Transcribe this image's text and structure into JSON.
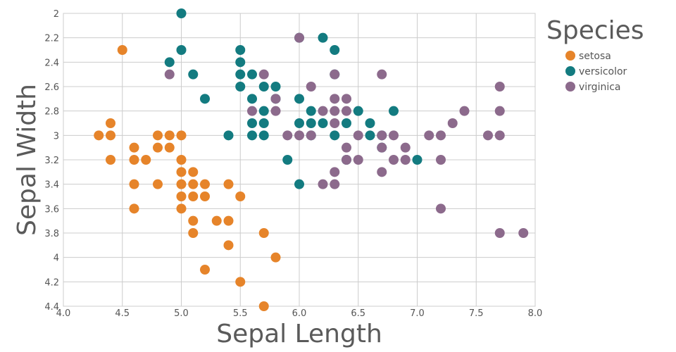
{
  "chart_data": {
    "type": "scatter",
    "xlabel": "Sepal Length",
    "ylabel": "Sepal Width",
    "xlim": [
      4.0,
      8.0
    ],
    "ylim": [
      2.0,
      4.4
    ],
    "y_axis_inverted": true,
    "x_ticks": [
      "4.0",
      "4.5",
      "5.0",
      "5.5",
      "6.0",
      "6.5",
      "7.0",
      "7.5",
      "8.0"
    ],
    "y_ticks": [
      "2",
      "2.2",
      "2.4",
      "2.6",
      "2.8",
      "3",
      "3.2",
      "3.4",
      "3.6",
      "3.8",
      "4",
      "4.2",
      "4.4"
    ],
    "grid": true,
    "legend": {
      "title": "Species",
      "placement": "right"
    },
    "series": [
      {
        "name": "setosa",
        "color": "#e6842a",
        "points": [
          [
            4.5,
            2.3
          ],
          [
            4.3,
            3.0
          ],
          [
            4.4,
            2.9
          ],
          [
            4.4,
            3.0
          ],
          [
            4.4,
            3.2
          ],
          [
            4.6,
            3.1
          ],
          [
            4.6,
            3.2
          ],
          [
            4.6,
            3.4
          ],
          [
            4.6,
            3.6
          ],
          [
            4.7,
            3.2
          ],
          [
            4.8,
            3.0
          ],
          [
            4.8,
            3.1
          ],
          [
            4.8,
            3.4
          ],
          [
            4.9,
            3.0
          ],
          [
            4.9,
            3.1
          ],
          [
            5.0,
            3.0
          ],
          [
            5.0,
            3.2
          ],
          [
            5.0,
            3.3
          ],
          [
            5.0,
            3.4
          ],
          [
            5.0,
            3.5
          ],
          [
            5.0,
            3.6
          ],
          [
            5.1,
            3.3
          ],
          [
            5.1,
            3.4
          ],
          [
            5.1,
            3.5
          ],
          [
            5.1,
            3.7
          ],
          [
            5.1,
            3.8
          ],
          [
            5.2,
            3.4
          ],
          [
            5.2,
            3.5
          ],
          [
            5.2,
            4.1
          ],
          [
            5.3,
            3.7
          ],
          [
            5.4,
            3.4
          ],
          [
            5.4,
            3.7
          ],
          [
            5.4,
            3.9
          ],
          [
            5.5,
            3.5
          ],
          [
            5.5,
            4.2
          ],
          [
            5.7,
            3.8
          ],
          [
            5.7,
            4.4
          ],
          [
            5.8,
            4.0
          ]
        ]
      },
      {
        "name": "versicolor",
        "color": "#137b80",
        "points": [
          [
            5.0,
            2.0
          ],
          [
            5.0,
            2.3
          ],
          [
            4.9,
            2.4
          ],
          [
            5.1,
            2.5
          ],
          [
            5.2,
            2.7
          ],
          [
            5.4,
            3.0
          ],
          [
            5.5,
            2.3
          ],
          [
            5.5,
            2.4
          ],
          [
            5.5,
            2.5
          ],
          [
            5.5,
            2.6
          ],
          [
            5.6,
            2.5
          ],
          [
            5.6,
            2.7
          ],
          [
            5.6,
            2.9
          ],
          [
            5.6,
            3.0
          ],
          [
            5.7,
            2.6
          ],
          [
            5.7,
            2.8
          ],
          [
            5.7,
            2.9
          ],
          [
            5.7,
            3.0
          ],
          [
            5.8,
            2.6
          ],
          [
            5.8,
            2.7
          ],
          [
            5.9,
            3.2
          ],
          [
            6.0,
            2.2
          ],
          [
            6.0,
            2.7
          ],
          [
            6.0,
            2.9
          ],
          [
            6.0,
            3.4
          ],
          [
            6.1,
            2.8
          ],
          [
            6.1,
            2.9
          ],
          [
            6.1,
            3.0
          ],
          [
            6.2,
            2.2
          ],
          [
            6.2,
            2.9
          ],
          [
            6.3,
            2.3
          ],
          [
            6.3,
            2.5
          ],
          [
            6.3,
            3.0
          ],
          [
            6.4,
            2.9
          ],
          [
            6.4,
            3.2
          ],
          [
            6.5,
            2.8
          ],
          [
            6.6,
            2.9
          ],
          [
            6.6,
            3.0
          ],
          [
            6.7,
            3.0
          ],
          [
            6.7,
            3.1
          ],
          [
            6.8,
            2.8
          ],
          [
            7.0,
            3.2
          ]
        ]
      },
      {
        "name": "virginica",
        "color": "#8c6a8c",
        "points": [
          [
            4.9,
            2.5
          ],
          [
            5.6,
            2.8
          ],
          [
            5.7,
            2.5
          ],
          [
            5.8,
            2.7
          ],
          [
            5.8,
            2.8
          ],
          [
            5.9,
            3.0
          ],
          [
            6.0,
            2.2
          ],
          [
            6.0,
            3.0
          ],
          [
            6.1,
            2.6
          ],
          [
            6.1,
            3.0
          ],
          [
            6.2,
            2.8
          ],
          [
            6.2,
            3.4
          ],
          [
            6.3,
            2.5
          ],
          [
            6.3,
            2.7
          ],
          [
            6.3,
            2.8
          ],
          [
            6.3,
            2.9
          ],
          [
            6.3,
            3.3
          ],
          [
            6.3,
            3.4
          ],
          [
            6.4,
            2.7
          ],
          [
            6.4,
            2.8
          ],
          [
            6.4,
            3.1
          ],
          [
            6.4,
            3.2
          ],
          [
            6.5,
            3.0
          ],
          [
            6.5,
            3.2
          ],
          [
            6.7,
            2.5
          ],
          [
            6.7,
            3.0
          ],
          [
            6.7,
            3.1
          ],
          [
            6.7,
            3.3
          ],
          [
            6.8,
            3.0
          ],
          [
            6.8,
            3.2
          ],
          [
            6.9,
            3.1
          ],
          [
            6.9,
            3.2
          ],
          [
            7.1,
            3.0
          ],
          [
            7.2,
            3.0
          ],
          [
            7.2,
            3.2
          ],
          [
            7.2,
            3.6
          ],
          [
            7.3,
            2.9
          ],
          [
            7.4,
            2.8
          ],
          [
            7.6,
            3.0
          ],
          [
            7.7,
            2.6
          ],
          [
            7.7,
            2.8
          ],
          [
            7.7,
            3.0
          ],
          [
            7.7,
            3.8
          ],
          [
            7.9,
            3.8
          ]
        ]
      }
    ]
  }
}
